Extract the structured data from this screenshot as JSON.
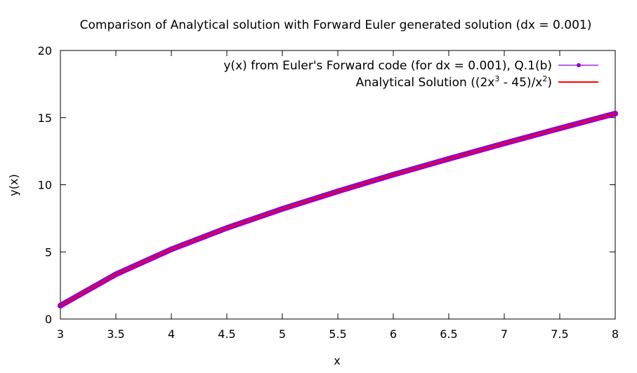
{
  "chart_data": {
    "type": "line",
    "title": "Comparison of Analytical solution with Forward Euler generated solution (dx = 0.001)",
    "xlabel": "x",
    "ylabel": "y(x)",
    "xlim": [
      3,
      8
    ],
    "ylim": [
      0,
      20
    ],
    "x_ticks": [
      "3",
      "3.5",
      "4",
      "4.5",
      "5",
      "5.5",
      "6",
      "6.5",
      "7",
      "7.5",
      "8"
    ],
    "y_ticks": [
      "0",
      "5",
      "10",
      "15",
      "20"
    ],
    "grid": false,
    "legend_position": "top-right",
    "x": [
      3.0,
      3.5,
      4.0,
      4.5,
      5.0,
      5.5,
      6.0,
      6.5,
      7.0,
      7.5,
      8.0
    ],
    "series": [
      {
        "name": "y(x) from Euler's Forward code (for dx = 0.001), Q.1(b)",
        "color": "#9400d3",
        "style": "linespoints",
        "values": [
          1.0,
          3.33,
          5.19,
          6.78,
          8.2,
          9.51,
          10.75,
          11.93,
          13.08,
          14.2,
          15.3
        ]
      },
      {
        "name": "Analytical Solution ((2x3 - 45)/x2)",
        "legend_parts": {
          "pre": "Analytical Solution ((2x",
          "sup1": "3",
          "mid": " - 45)/x",
          "sup2": "2",
          "post": ")"
        },
        "color": "#ff0000",
        "style": "lines",
        "values": [
          1.0,
          3.33,
          5.19,
          6.78,
          8.2,
          9.51,
          10.75,
          11.93,
          13.08,
          14.2,
          15.3
        ]
      }
    ]
  }
}
